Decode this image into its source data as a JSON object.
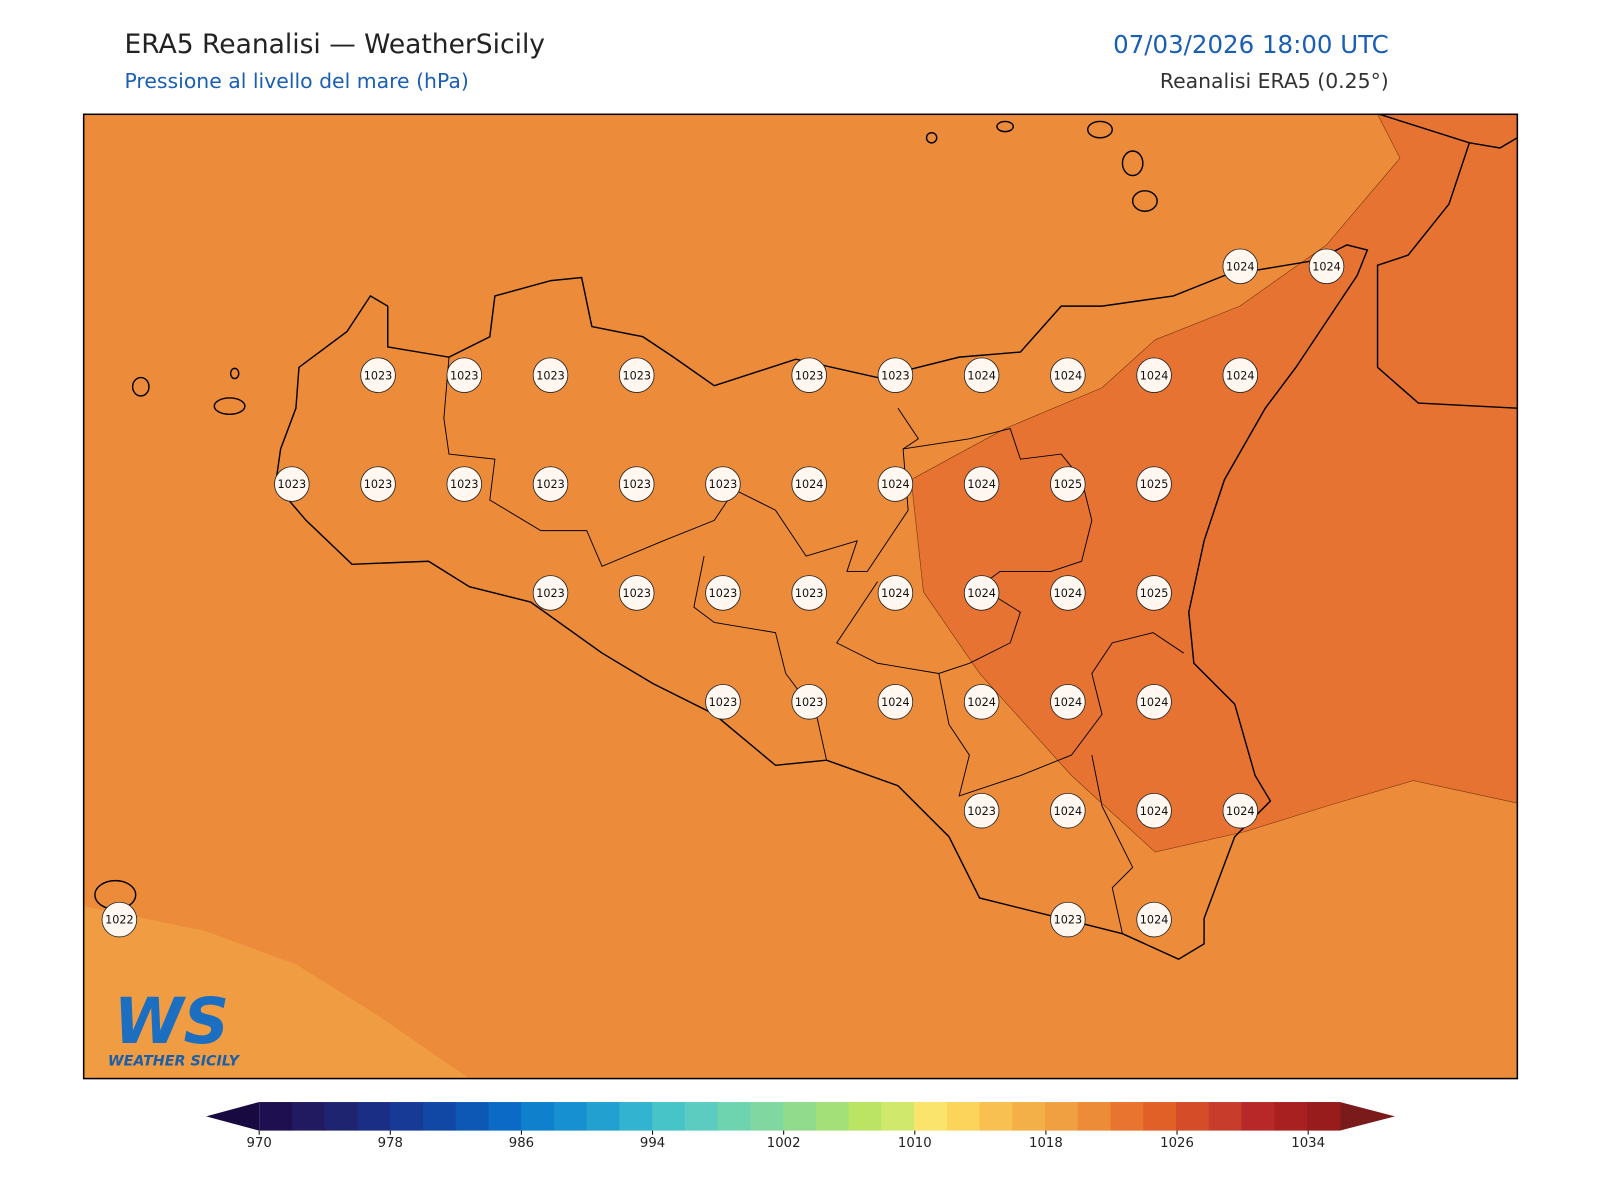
{
  "header": {
    "title": "ERA5 Reanalisi — WeatherSicily",
    "subtitle": "Pressione al livello del mare (hPa)",
    "datetime": "07/03/2026 18:00 UTC",
    "source": "Reanalisi ERA5 (0.25°)"
  },
  "stations": [
    [
      null,
      null,
      null,
      null,
      null,
      null,
      null,
      null,
      null,
      null,
      null,
      null,
      null,
      1024,
      1024
    ],
    [
      null,
      null,
      null,
      1023,
      1023,
      1023,
      1023,
      null,
      1023,
      1023,
      1024,
      1024,
      1024,
      1024,
      null
    ],
    [
      null,
      null,
      1023,
      1023,
      1023,
      1023,
      1023,
      1023,
      1024,
      1024,
      1024,
      1025,
      1025,
      null,
      null
    ],
    [
      null,
      null,
      null,
      null,
      null,
      1023,
      1023,
      1023,
      1023,
      1024,
      1024,
      1024,
      1025,
      null,
      null
    ],
    [
      null,
      null,
      null,
      null,
      null,
      null,
      null,
      1023,
      1023,
      1024,
      1024,
      1024,
      1024,
      null,
      null
    ],
    [
      null,
      null,
      null,
      null,
      null,
      null,
      null,
      null,
      null,
      null,
      1023,
      1024,
      1024,
      1024,
      null
    ],
    [
      1022,
      null,
      null,
      null,
      null,
      null,
      null,
      null,
      null,
      null,
      null,
      1023,
      1024,
      null,
      null
    ]
  ],
  "colorbar": {
    "ticks": [
      970,
      978,
      986,
      994,
      1002,
      1010,
      1018,
      1026,
      1034
    ],
    "colors": [
      "#1e1050",
      "#221a60",
      "#1e2470",
      "#1a2e85",
      "#163a95",
      "#1248a5",
      "#0e58b5",
      "#0a6ac5",
      "#0e80cc",
      "#1690d0",
      "#22a0d0",
      "#32b4d0",
      "#46c4c8",
      "#5cccc0",
      "#6ed4b0",
      "#80d8a0",
      "#90dc8c",
      "#a4e078",
      "#bce464",
      "#d0e86c",
      "#fbe46c",
      "#fcd45c",
      "#f8c050",
      "#f4b048",
      "#f0a040",
      "#ec8c38",
      "#e87430",
      "#e06028",
      "#d44c28",
      "#c83c2c",
      "#b82828",
      "#a82020",
      "#981c1c"
    ]
  },
  "logo": {
    "mark": "WS",
    "name": "WEATHER SICILY"
  }
}
